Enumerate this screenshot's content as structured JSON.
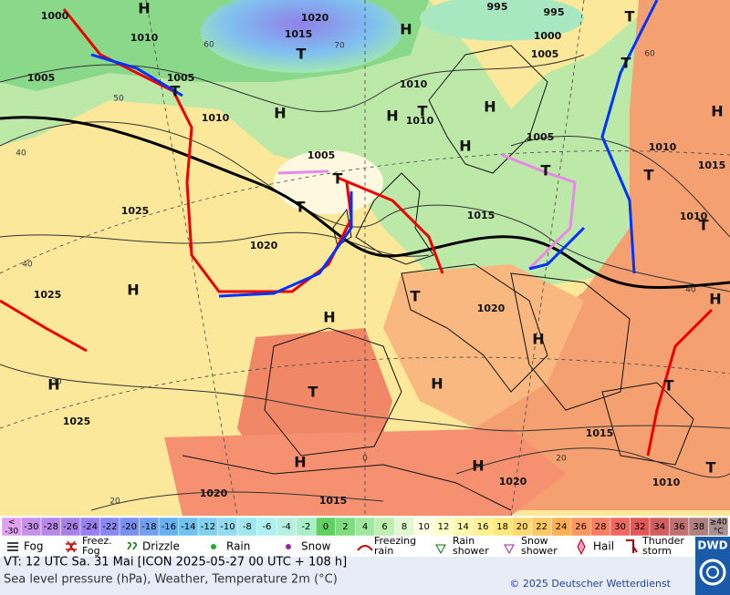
{
  "map": {
    "pressure_labels": [
      "1000",
      "1010",
      "1020",
      "1015",
      "995",
      "995",
      "1000",
      "1005",
      "1005",
      "1005",
      "1010",
      "1010",
      "1010",
      "1005",
      "1010",
      "1015",
      "1005",
      "1025",
      "1015",
      "1010",
      "1020",
      "1025",
      "1020",
      "1025",
      "1015",
      "1020",
      "1010",
      "1020",
      "1015"
    ],
    "highs": [
      "H",
      "H",
      "H",
      "H",
      "H",
      "H",
      "H",
      "H",
      "H",
      "H",
      "H",
      "H",
      "H",
      "H",
      "H"
    ],
    "lows": [
      "T",
      "T",
      "T",
      "T",
      "T",
      "T",
      "T",
      "T",
      "T",
      "T",
      "T",
      "T",
      "T",
      "T"
    ],
    "isotherm_labels": [
      "60",
      "70",
      "50",
      "40",
      "40",
      "40",
      "30",
      "20",
      "0",
      "20",
      "60"
    ]
  },
  "color_scale": {
    "under": {
      "label": [
        "<",
        "-30"
      ],
      "color": "#e0a0f0"
    },
    "over": {
      "label": [
        "≥40",
        "°C"
      ],
      "color": "#a89090"
    },
    "steps": [
      {
        "value": -30,
        "color": "#c890e8"
      },
      {
        "value": -28,
        "color": "#b888e8"
      },
      {
        "value": -26,
        "color": "#a880e8"
      },
      {
        "value": -24,
        "color": "#9880f0"
      },
      {
        "value": -22,
        "color": "#8888f0"
      },
      {
        "value": -20,
        "color": "#7890f0"
      },
      {
        "value": -18,
        "color": "#70a0f0"
      },
      {
        "value": -16,
        "color": "#68b0f0"
      },
      {
        "value": -14,
        "color": "#70c0f0"
      },
      {
        "value": -12,
        "color": "#80d0f0"
      },
      {
        "value": -10,
        "color": "#90dcf0"
      },
      {
        "value": -8,
        "color": "#a0e8f0"
      },
      {
        "value": -6,
        "color": "#b0f0f0"
      },
      {
        "value": -4,
        "color": "#b8f0e0"
      },
      {
        "value": -2,
        "color": "#a8f0c8"
      },
      {
        "value": 0,
        "color": "#60d060"
      },
      {
        "value": 2,
        "color": "#80dc80"
      },
      {
        "value": 4,
        "color": "#a0e8a0"
      },
      {
        "value": 6,
        "color": "#c0f0b0"
      },
      {
        "value": 8,
        "color": "#e0f8d0"
      },
      {
        "value": 10,
        "color": "#ffffe8"
      },
      {
        "value": 12,
        "color": "#ffffc8"
      },
      {
        "value": 14,
        "color": "#fff8a8"
      },
      {
        "value": 16,
        "color": "#fff090"
      },
      {
        "value": 18,
        "color": "#ffe880"
      },
      {
        "value": 20,
        "color": "#ffd870"
      },
      {
        "value": 22,
        "color": "#ffc860"
      },
      {
        "value": 24,
        "color": "#ffb050"
      },
      {
        "value": 26,
        "color": "#ff9860"
      },
      {
        "value": 28,
        "color": "#f88060"
      },
      {
        "value": 30,
        "color": "#f06860"
      },
      {
        "value": 32,
        "color": "#e05858"
      },
      {
        "value": 34,
        "color": "#d06060"
      },
      {
        "value": 36,
        "color": "#c07070"
      },
      {
        "value": 38,
        "color": "#b08080"
      }
    ]
  },
  "legend": [
    [
      "Fog"
    ],
    [
      "Freez.",
      "Fog"
    ],
    [
      "Drizzle"
    ],
    [
      "Rain"
    ],
    [
      "Snow"
    ],
    [
      "Freezing",
      "rain"
    ],
    [
      "Rain",
      "shower"
    ],
    [
      "Snow",
      "shower"
    ],
    [
      "Hail"
    ],
    [
      "Thunder",
      "storm"
    ]
  ],
  "footer": {
    "valid_time": "VT: 12 UTC Sa.  31 Mai [ICON 2025-05-27  00 UTC + 108 h]",
    "description": "Sea level pressure (hPa), Weather, Temperature 2m (°C)",
    "copyright": "© 2025 Deutscher Wetterdienst",
    "logo": "DWD"
  }
}
